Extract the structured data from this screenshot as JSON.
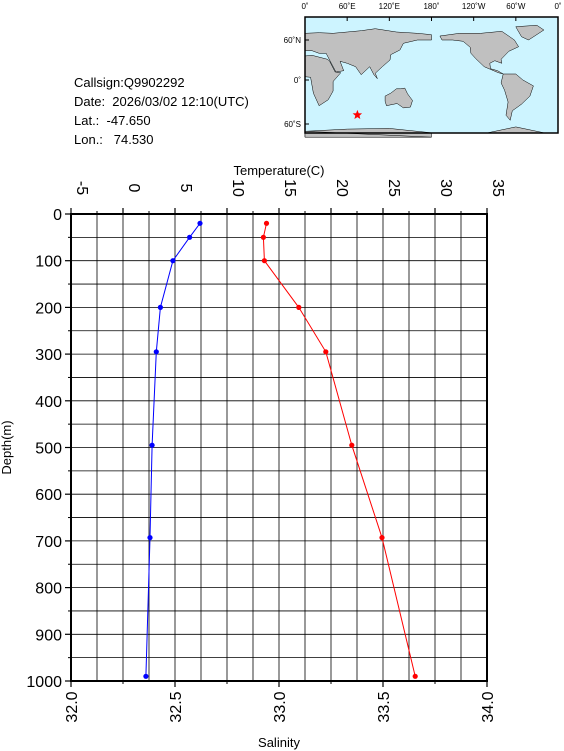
{
  "info": {
    "callsign": "Callsign:Q9902292",
    "date": "Date:  2026/03/02 12:10(UTC)",
    "lat": "Lat.:  -47.650",
    "lon": "Lon.:   74.530"
  },
  "map": {
    "top_labels": [
      "0˚",
      "60˚E",
      "120˚E",
      "180˚",
      "120˚W",
      "60˚W",
      "0˚"
    ],
    "side_labels": [
      "60˚N",
      "0˚",
      "60˚S"
    ],
    "marker": {
      "lat": -47.65,
      "lon": 74.53
    },
    "colors": {
      "ocean": "#cdf4ff",
      "land": "#c0c0c0",
      "marker": "#ff0000"
    }
  },
  "chart_data": {
    "type": "line",
    "ylabel": "Depth(m)",
    "ylim": [
      1000,
      0
    ],
    "yticks": [
      "0",
      "100",
      "200",
      "300",
      "400",
      "500",
      "600",
      "700",
      "800",
      "900",
      "1000"
    ],
    "top_axis": {
      "label": "Temperature(C)",
      "lim": [
        -5,
        35
      ],
      "ticks": [
        "-5",
        "0",
        "5",
        "10",
        "15",
        "20",
        "25",
        "30",
        "35"
      ]
    },
    "bottom_axis": {
      "label": "Salinity",
      "lim": [
        32.0,
        34.0
      ],
      "ticks": [
        "32.0",
        "32.5",
        "33.0",
        "33.5",
        "34.0"
      ]
    },
    "grid": true,
    "series": [
      {
        "axis": "top",
        "color": "#ff0000",
        "points": [
          {
            "x": 13.8,
            "y": 20
          },
          {
            "x": 13.5,
            "y": 50
          },
          {
            "x": 13.6,
            "y": 100
          },
          {
            "x": 16.9,
            "y": 200
          },
          {
            "x": 19.5,
            "y": 295
          },
          {
            "x": 22.0,
            "y": 495
          },
          {
            "x": 24.9,
            "y": 693
          },
          {
            "x": 28.1,
            "y": 990
          }
        ]
      },
      {
        "axis": "bottom",
        "color": "#0000ff",
        "points": [
          {
            "x": 32.62,
            "y": 20
          },
          {
            "x": 32.57,
            "y": 50
          },
          {
            "x": 32.49,
            "y": 100
          },
          {
            "x": 32.43,
            "y": 200
          },
          {
            "x": 32.41,
            "y": 295
          },
          {
            "x": 32.39,
            "y": 495
          },
          {
            "x": 32.38,
            "y": 693
          },
          {
            "x": 32.36,
            "y": 990
          }
        ]
      }
    ]
  }
}
